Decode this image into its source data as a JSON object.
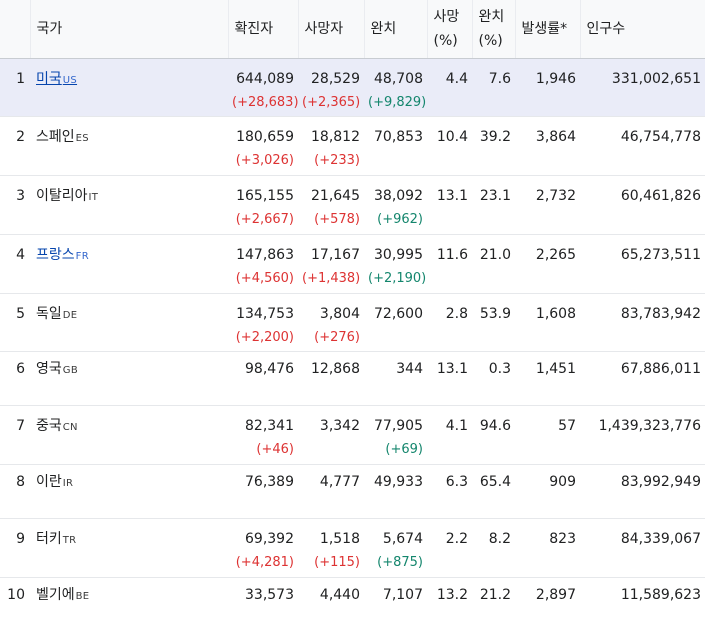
{
  "headers": {
    "country": "국가",
    "confirmed": "확진자",
    "deaths": "사망자",
    "recovered": "완치",
    "death_rate_line1": "사망",
    "death_rate_line2": "(%)",
    "recovery_rate_line1": "완치",
    "recovery_rate_line2": "(%)",
    "incidence": "발생률*",
    "population": "인구수"
  },
  "rows": [
    {
      "rank": "1",
      "country": "미국",
      "code": "US",
      "confirmed": "644,089",
      "confirmed_delta": "(+28,683)",
      "deaths": "28,529",
      "deaths_delta": "(+2,365)",
      "recovered": "48,708",
      "recovered_delta": "(+9,829)",
      "death_rate": "4.4",
      "recovery_rate": "7.6",
      "incidence": "1,946",
      "population": "331,002,651"
    },
    {
      "rank": "2",
      "country": "스페인",
      "code": "ES",
      "confirmed": "180,659",
      "confirmed_delta": "(+3,026)",
      "deaths": "18,812",
      "deaths_delta": "(+233)",
      "recovered": "70,853",
      "recovered_delta": "",
      "death_rate": "10.4",
      "recovery_rate": "39.2",
      "incidence": "3,864",
      "population": "46,754,778"
    },
    {
      "rank": "3",
      "country": "이탈리아",
      "code": "IT",
      "confirmed": "165,155",
      "confirmed_delta": "(+2,667)",
      "deaths": "21,645",
      "deaths_delta": "(+578)",
      "recovered": "38,092",
      "recovered_delta": "(+962)",
      "death_rate": "13.1",
      "recovery_rate": "23.1",
      "incidence": "2,732",
      "population": "60,461,826"
    },
    {
      "rank": "4",
      "country": "프랑스",
      "code": "FR",
      "confirmed": "147,863",
      "confirmed_delta": "(+4,560)",
      "deaths": "17,167",
      "deaths_delta": "(+1,438)",
      "recovered": "30,995",
      "recovered_delta": "(+2,190)",
      "death_rate": "11.6",
      "recovery_rate": "21.0",
      "incidence": "2,265",
      "population": "65,273,511"
    },
    {
      "rank": "5",
      "country": "독일",
      "code": "DE",
      "confirmed": "134,753",
      "confirmed_delta": "(+2,200)",
      "deaths": "3,804",
      "deaths_delta": "(+276)",
      "recovered": "72,600",
      "recovered_delta": "",
      "death_rate": "2.8",
      "recovery_rate": "53.9",
      "incidence": "1,608",
      "population": "83,783,942"
    },
    {
      "rank": "6",
      "country": "영국",
      "code": "GB",
      "confirmed": "98,476",
      "confirmed_delta": "",
      "deaths": "12,868",
      "deaths_delta": "",
      "recovered": "344",
      "recovered_delta": "",
      "death_rate": "13.1",
      "recovery_rate": "0.3",
      "incidence": "1,451",
      "population": "67,886,011"
    },
    {
      "rank": "7",
      "country": "중국",
      "code": "CN",
      "confirmed": "82,341",
      "confirmed_delta": "(+46)",
      "deaths": "3,342",
      "deaths_delta": "",
      "recovered": "77,905",
      "recovered_delta": "(+69)",
      "death_rate": "4.1",
      "recovery_rate": "94.6",
      "incidence": "57",
      "population": "1,439,323,776"
    },
    {
      "rank": "8",
      "country": "이란",
      "code": "IR",
      "confirmed": "76,389",
      "confirmed_delta": "",
      "deaths": "4,777",
      "deaths_delta": "",
      "recovered": "49,933",
      "recovered_delta": "",
      "death_rate": "6.3",
      "recovery_rate": "65.4",
      "incidence": "909",
      "population": "83,992,949"
    },
    {
      "rank": "9",
      "country": "터키",
      "code": "TR",
      "confirmed": "69,392",
      "confirmed_delta": "(+4,281)",
      "deaths": "1,518",
      "deaths_delta": "(+115)",
      "recovered": "5,674",
      "recovered_delta": "(+875)",
      "death_rate": "2.2",
      "recovery_rate": "8.2",
      "incidence": "823",
      "population": "84,339,067"
    },
    {
      "rank": "10",
      "country": "벨기에",
      "code": "BE",
      "confirmed": "33,573",
      "confirmed_delta": "",
      "deaths": "4,440",
      "deaths_delta": "",
      "recovered": "7,107",
      "recovered_delta": "",
      "death_rate": "13.2",
      "recovery_rate": "21.2",
      "incidence": "2,897",
      "population": "11,589,623"
    }
  ],
  "colors": {
    "increase": "#dd3333",
    "recovered_increase": "#14866d",
    "link": "#0645ad",
    "highlight_row": "#eaecf8",
    "header_bg": "#f8f9fa"
  }
}
